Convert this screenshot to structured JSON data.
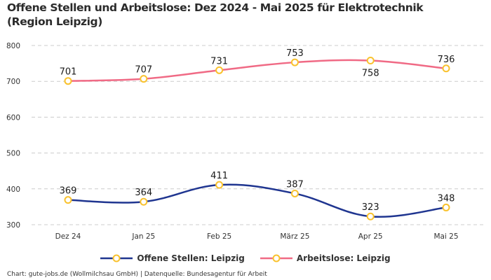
{
  "chart_data": {
    "type": "line",
    "title": "Offene Stellen und Arbeitslose: Dez 2024 - Mai 2025 für Elektrotechnik (Region Leipzig)",
    "categories": [
      "Dez 24",
      "Jan 25",
      "Feb 25",
      "März 25",
      "Apr 25",
      "Mai 25"
    ],
    "series": [
      {
        "name": "Offene Stellen: Leipzig",
        "color": "#1f3590",
        "values": [
          369,
          364,
          411,
          387,
          323,
          348
        ]
      },
      {
        "name": "Arbeitslose: Leipzig",
        "color": "#f06a85",
        "values": [
          701,
          707,
          731,
          753,
          758,
          736
        ]
      }
    ],
    "marker_color": "#f9c22e",
    "xlabel": "",
    "ylabel": "",
    "ylim": [
      300,
      800
    ],
    "yticks": [
      300,
      400,
      500,
      600,
      700,
      800
    ],
    "grid": true,
    "legend_position": "bottom-center",
    "label_positions": {
      "Offene Stellen: Leipzig": [
        "above",
        "above",
        "above",
        "above",
        "above",
        "above"
      ],
      "Arbeitslose: Leipzig": [
        "above",
        "above",
        "above",
        "above",
        "below",
        "above"
      ]
    }
  },
  "footer": "Chart: gute-jobs.de (Wollmilchsau GmbH) | Datenquelle: Bundesagentur für Arbeit"
}
